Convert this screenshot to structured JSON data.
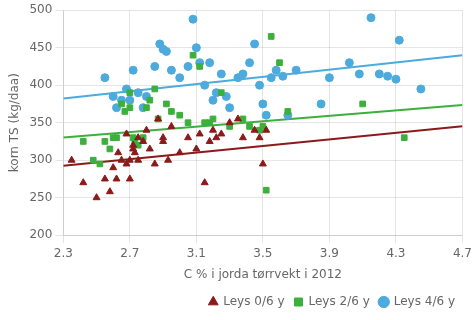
{
  "chart_data": {
    "type": "scatter",
    "xlabel": "C % i jorda tørrvekt i 2012",
    "ylabel": "korn TS (kg/daa)",
    "xlim": [
      2.3,
      4.7
    ],
    "ylim": [
      200,
      500
    ],
    "xticks": [
      2.3,
      2.7,
      3.1,
      3.5,
      3.9,
      4.3,
      4.7
    ],
    "yticks": [
      200,
      250,
      300,
      350,
      400,
      450,
      500
    ],
    "grid": true,
    "legend": "lower right",
    "series": [
      {
        "name": "Leys 0/6 y",
        "color": "#8B1A1A",
        "marker": "triangle",
        "x": [
          2.35,
          2.42,
          2.5,
          2.55,
          2.58,
          2.6,
          2.62,
          2.63,
          2.65,
          2.68,
          2.68,
          2.7,
          2.7,
          2.72,
          2.72,
          2.73,
          2.75,
          2.75,
          2.78,
          2.8,
          2.82,
          2.85,
          2.87,
          2.9,
          2.9,
          2.93,
          2.95,
          3.0,
          3.05,
          3.1,
          3.12,
          3.15,
          3.18,
          3.2,
          3.22,
          3.25,
          3.3,
          3.35,
          3.38,
          3.45,
          3.48,
          3.5,
          3.52
        ],
        "values": [
          300,
          270,
          250,
          275,
          258,
          290,
          275,
          310,
          300,
          295,
          335,
          300,
          275,
          320,
          315,
          310,
          330,
          300,
          325,
          340,
          315,
          295,
          355,
          330,
          325,
          300,
          345,
          310,
          330,
          315,
          335,
          270,
          325,
          340,
          330,
          335,
          350,
          355,
          330,
          340,
          330,
          295,
          340
        ]
      },
      {
        "name": "Leys 2/6 y",
        "color": "#3CB03C",
        "marker": "square",
        "x": [
          2.42,
          2.48,
          2.52,
          2.55,
          2.58,
          2.6,
          2.62,
          2.65,
          2.67,
          2.7,
          2.7,
          2.72,
          2.73,
          2.75,
          2.78,
          2.8,
          2.82,
          2.85,
          2.87,
          2.92,
          2.95,
          3.0,
          3.05,
          3.08,
          3.12,
          3.15,
          3.18,
          3.2,
          3.25,
          3.3,
          3.38,
          3.42,
          3.48,
          3.5,
          3.52,
          3.55,
          3.6,
          3.65,
          4.1,
          4.35
        ],
        "values": [
          325,
          300,
          295,
          325,
          315,
          330,
          330,
          375,
          365,
          390,
          370,
          330,
          325,
          320,
          330,
          370,
          380,
          395,
          355,
          375,
          365,
          360,
          350,
          440,
          425,
          350,
          350,
          355,
          390,
          345,
          355,
          345,
          340,
          345,
          260,
          465,
          430,
          365,
          375,
          330
        ]
      },
      {
        "name": "Leys 4/6 y",
        "color": "#4DAADD",
        "marker": "circle",
        "x": [
          2.55,
          2.6,
          2.62,
          2.65,
          2.68,
          2.7,
          2.72,
          2.75,
          2.78,
          2.8,
          2.85,
          2.88,
          2.9,
          2.92,
          2.95,
          3.0,
          3.05,
          3.08,
          3.1,
          3.12,
          3.15,
          3.18,
          3.2,
          3.22,
          3.25,
          3.28,
          3.3,
          3.35,
          3.38,
          3.42,
          3.45,
          3.48,
          3.5,
          3.52,
          3.55,
          3.58,
          3.62,
          3.65,
          3.7,
          3.85,
          3.9,
          4.02,
          4.08,
          4.15,
          4.2,
          4.25,
          4.3,
          4.32,
          4.45
        ],
        "values": [
          410,
          385,
          370,
          380,
          395,
          380,
          420,
          390,
          370,
          385,
          425,
          455,
          448,
          445,
          420,
          410,
          425,
          488,
          450,
          430,
          400,
          430,
          380,
          390,
          415,
          385,
          370,
          410,
          415,
          430,
          455,
          400,
          375,
          360,
          410,
          420,
          412,
          360,
          420,
          375,
          410,
          430,
          415,
          490,
          415,
          412,
          408,
          460,
          395
        ]
      },
      {
        "type": "line",
        "color": "#8B1A1A",
        "x": [
          2.3,
          4.7
        ],
        "values": [
          292.6,
          345.4
        ]
      },
      {
        "type": "line",
        "color": "#3CB03C",
        "x": [
          2.3,
          4.7
        ],
        "values": [
          330.4,
          373.6
        ]
      },
      {
        "type": "line",
        "color": "#4DAADD",
        "x": [
          2.3,
          4.7
        ],
        "values": [
          382.2,
          439.8
        ]
      }
    ]
  }
}
